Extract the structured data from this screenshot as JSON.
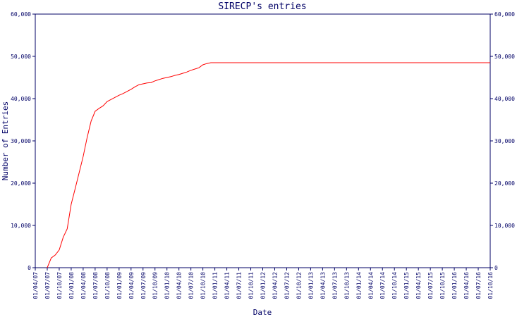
{
  "chart_data": {
    "type": "line",
    "title": "SIRECP's entries",
    "x_label": "Date",
    "y_label": "Number of Entries",
    "xlim": [
      "01/04/07",
      "01/10/16"
    ],
    "xticks": [
      "01/04/07",
      "01/07/07",
      "01/10/07",
      "01/01/08",
      "01/04/08",
      "01/07/08",
      "01/10/08",
      "01/01/09",
      "01/04/09",
      "01/07/09",
      "01/10/09",
      "01/01/10",
      "01/04/10",
      "01/07/10",
      "01/10/10",
      "01/01/11",
      "01/04/11",
      "01/07/11",
      "01/10/11",
      "01/01/12",
      "01/04/12",
      "01/07/12",
      "01/10/12",
      "01/01/13",
      "01/04/13",
      "01/07/13",
      "01/10/13",
      "01/01/14",
      "01/04/14",
      "01/07/14",
      "01/10/14",
      "01/01/15",
      "01/04/15",
      "01/07/15",
      "01/10/15",
      "01/01/16",
      "01/04/16",
      "01/07/16",
      "01/10/16"
    ],
    "ylim": [
      0,
      60000
    ],
    "yticks": [
      0,
      {
        "value": 10000,
        "label": "10,000"
      },
      {
        "value": 20000,
        "label": "20,000"
      },
      {
        "value": 30000,
        "label": "30,000"
      },
      {
        "value": 40000,
        "label": "40,000"
      },
      {
        "value": 50000,
        "label": "50,000"
      },
      {
        "value": 60000,
        "label": "60,000"
      }
    ],
    "y2lim": [
      0,
      60000
    ],
    "y2ticks": [
      0,
      {
        "value": 10000,
        "label": "10,000"
      },
      {
        "value": 20000,
        "label": "20,000"
      },
      {
        "value": 30000,
        "label": "30,000"
      },
      {
        "value": 40000,
        "label": "40,000"
      },
      {
        "value": 50000,
        "label": "50,000"
      },
      {
        "value": 60000,
        "label": "60,000"
      }
    ],
    "series": [
      {
        "name": "Entries",
        "color": "#ff0000",
        "x": [
          "01/07/07",
          "01/08/07",
          "01/09/07",
          "01/10/07",
          "01/11/07",
          "01/12/07",
          "01/01/08",
          "01/02/08",
          "01/03/08",
          "01/04/08",
          "01/05/08",
          "01/06/08",
          "01/07/08",
          "01/08/08",
          "01/09/08",
          "01/10/08",
          "01/11/08",
          "01/12/08",
          "01/01/09",
          "01/02/09",
          "01/03/09",
          "01/04/09",
          "01/05/09",
          "01/06/09",
          "01/07/09",
          "01/08/09",
          "01/09/09",
          "01/10/09",
          "01/11/09",
          "01/12/09",
          "01/01/10",
          "01/02/10",
          "01/03/10",
          "01/04/10",
          "01/05/10",
          "01/06/10",
          "01/07/10",
          "01/08/10",
          "01/09/10",
          "01/10/10",
          "01/11/10",
          "01/12/10",
          "01/01/11",
          "01/10/16"
        ],
        "values": [
          0,
          2300,
          3000,
          4200,
          7200,
          9200,
          15000,
          18700,
          22500,
          26300,
          30800,
          34700,
          37000,
          37700,
          38300,
          39300,
          39800,
          40300,
          40800,
          41200,
          41700,
          42200,
          42800,
          43300,
          43500,
          43700,
          43800,
          44200,
          44500,
          44800,
          45000,
          45200,
          45500,
          45700,
          46000,
          46300,
          46700,
          47000,
          47300,
          48000,
          48300,
          48500,
          48500,
          48500
        ]
      }
    ]
  }
}
